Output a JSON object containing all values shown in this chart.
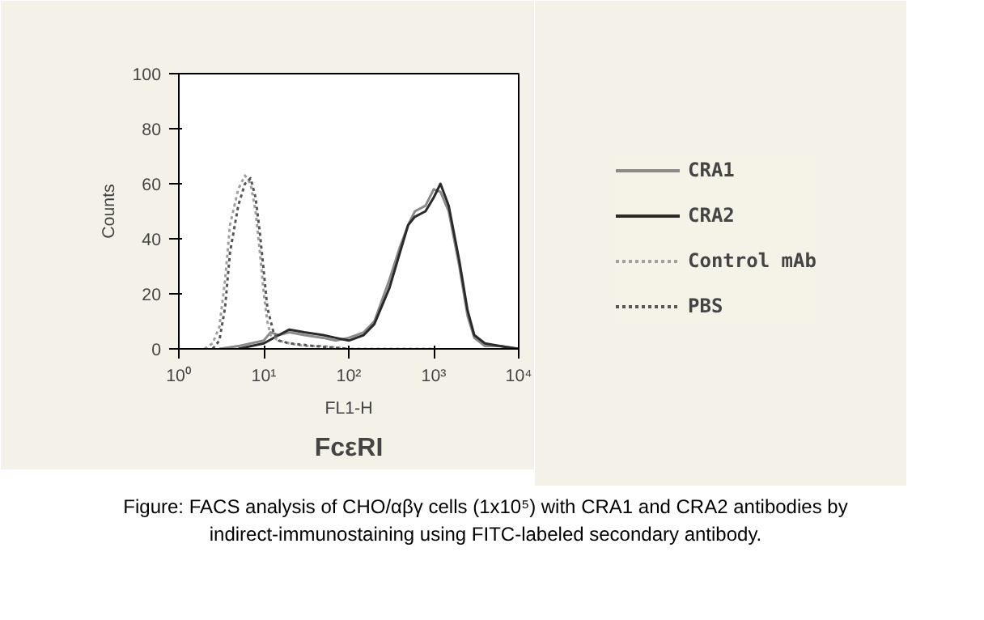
{
  "chart_data": {
    "type": "line",
    "xlabel": "FL1-H",
    "ylabel": "Counts",
    "log": "x",
    "grid": false,
    "legend": "right",
    "xlim": [
      1,
      10000
    ],
    "xticks": [
      {
        "value": 1,
        "label": "10⁰"
      },
      {
        "value": 10,
        "label": "10¹"
      },
      {
        "value": 100,
        "label": "10²"
      },
      {
        "value": 1000,
        "label": "10³"
      },
      {
        "value": 10000,
        "label": "10⁴"
      }
    ],
    "ylim": [
      0,
      100
    ],
    "yticks": [
      0,
      20,
      40,
      60,
      80,
      100
    ],
    "series": [
      {
        "name": "CRA1",
        "color": "#8a8a8a",
        "line_style": "solid",
        "x": [
          3,
          5,
          10,
          12,
          15,
          20,
          30,
          50,
          70,
          100,
          150,
          200,
          300,
          400,
          500,
          600,
          800,
          1000,
          1200,
          1500,
          2000,
          2500,
          3000,
          4000,
          6000,
          10000
        ],
        "values": [
          0,
          1,
          3,
          6,
          5,
          6,
          5,
          4,
          3,
          4,
          6,
          10,
          25,
          37,
          45,
          50,
          52,
          58,
          57,
          50,
          30,
          12,
          4,
          1,
          1,
          0
        ]
      },
      {
        "name": "CRA2",
        "color": "#2a2a2a",
        "line_style": "solid",
        "x": [
          5,
          10,
          15,
          20,
          30,
          50,
          70,
          100,
          150,
          200,
          300,
          400,
          500,
          600,
          800,
          1000,
          1200,
          1500,
          2000,
          2500,
          3000,
          4000,
          6000,
          10000
        ],
        "values": [
          0,
          2,
          5,
          7,
          6,
          5,
          4,
          3,
          5,
          9,
          22,
          35,
          45,
          48,
          50,
          55,
          60,
          52,
          32,
          14,
          5,
          2,
          1,
          0
        ]
      },
      {
        "name": "Control mAb",
        "color": "#a0a0a0",
        "line_style": "dotted",
        "x": [
          2,
          2.5,
          3,
          3.5,
          4,
          5,
          6,
          7,
          8,
          9,
          10,
          11,
          12,
          15,
          20,
          30,
          50,
          100,
          1000
        ],
        "values": [
          0,
          2,
          8,
          25,
          45,
          58,
          63,
          60,
          50,
          35,
          20,
          10,
          5,
          3,
          2,
          1,
          1,
          0,
          0
        ]
      },
      {
        "name": "PBS",
        "color": "#555555",
        "line_style": "dotted",
        "x": [
          2.5,
          3,
          3.5,
          4,
          5,
          6,
          7,
          8,
          9,
          10,
          11,
          13,
          15,
          20,
          40,
          100
        ],
        "values": [
          0,
          3,
          15,
          35,
          52,
          60,
          62,
          55,
          42,
          28,
          15,
          6,
          3,
          2,
          1,
          0
        ]
      }
    ],
    "annotations": [
      "FcεRI",
      "Figure: FACS analysis of CHO/αβγ cells (1x10⁵) with CRA1 and CRA2 antibodies by indirect-immunostaining using FITC-labeled secondary antibody."
    ]
  }
}
